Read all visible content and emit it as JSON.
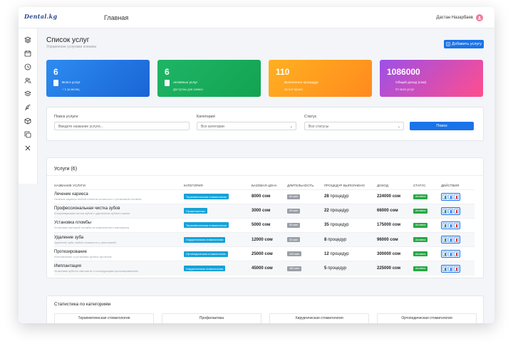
{
  "header": {
    "logo": "Dental.kg",
    "title": "Главная",
    "user_name": "Дастан Назарбаев"
  },
  "sidebar": {
    "icons": [
      "layers-icon",
      "calendar-icon",
      "clock-icon",
      "users-icon",
      "stack-icon",
      "feather-icon",
      "cube-icon",
      "copy-icon",
      "close-icon"
    ]
  },
  "page": {
    "title": "Список услуг",
    "subtitle": "Управление услугами клиники",
    "add_button": "Добавить услугу"
  },
  "cards": [
    {
      "value": "6",
      "label": "Всего услуг",
      "sub": "+ 1 за месяц",
      "color_from": "#2d8cf0",
      "color_to": "#1a64d6"
    },
    {
      "value": "6",
      "label": "Активных услуг",
      "sub": "Доступны для записи",
      "color_from": "#1fb567",
      "color_to": "#12a351"
    },
    {
      "value": "110",
      "label": "Выполнено процедур",
      "sub": "За всё время",
      "color_from": "#ffb020",
      "color_to": "#ff8a1e"
    },
    {
      "value": "1086000",
      "label": "Общий доход (сом)",
      "sub": "От всех услуг",
      "color_from": "#9c50e8",
      "color_to": "#ff4d8d"
    }
  ],
  "filters": {
    "search_label": "Поиск услуги",
    "search_placeholder": "Введите название услуги...",
    "category_label": "Категория",
    "category_value": "Все категории",
    "status_label": "Статус",
    "status_value": "Все статусы",
    "search_button": "Поиск"
  },
  "services": {
    "title": "Услуги (6)",
    "columns": [
      "Название услуги",
      "Категория",
      "Базовая цена",
      "Длительность",
      "Процедур выполнено",
      "Доход",
      "Статус",
      "Действия"
    ],
    "rows": [
      {
        "name": "Лечение кариеса",
        "desc": "Лечение кариеса любой степени сложности с установкой пломбы",
        "category": "Терапевтическая стоматология",
        "price": "8000 сом",
        "duration": "60 мин",
        "count": "28",
        "count_suffix": "процедур",
        "income": "224000 сом",
        "status": "Активна"
      },
      {
        "name": "Профессиональная чистка зубов",
        "desc": "Ультразвуковая чистка зубов с удалением зубного камня",
        "category": "Профилактика",
        "price": "3000 сом",
        "duration": "45 мин",
        "count": "22",
        "count_suffix": "процедур",
        "income": "66000 сом",
        "status": "Активна"
      },
      {
        "name": "Установка пломбы",
        "desc": "Установка световой пломбы из композитного материала",
        "category": "Терапевтическая стоматология",
        "price": "5000 сом",
        "duration": "30 мин",
        "count": "35",
        "count_suffix": "процедур",
        "income": "175000 сом",
        "status": "Активна"
      },
      {
        "name": "Удаление зуба",
        "desc": "Удаление зуба любой сложности с анестезией",
        "category": "Хирургическая стоматология",
        "price": "12000 сом",
        "duration": "30 мин",
        "count": "8",
        "count_suffix": "процедур",
        "income": "96000 сом",
        "status": "Активна"
      },
      {
        "name": "Протезирование",
        "desc": "Изготовление и установка зубных протезов",
        "category": "Ортопедическая стоматология",
        "price": "25000 сом",
        "duration": "120 мин",
        "count": "12",
        "count_suffix": "процедур",
        "income": "300000 сом",
        "status": "Активна"
      },
      {
        "name": "Имплантация",
        "desc": "Установка зубного импланта с последующим протезированием",
        "category": "Хирургическая стоматология",
        "price": "45000 сом",
        "duration": "180 мин",
        "count": "5",
        "count_suffix": "процедур",
        "income": "225000 сом",
        "status": "Активна"
      }
    ]
  },
  "stats": {
    "title": "Статистика по категориям",
    "categories": [
      "Терапевтическая стоматология",
      "Профилактика",
      "Хирургическая стоматология",
      "Ортопедическая стоматология"
    ]
  }
}
